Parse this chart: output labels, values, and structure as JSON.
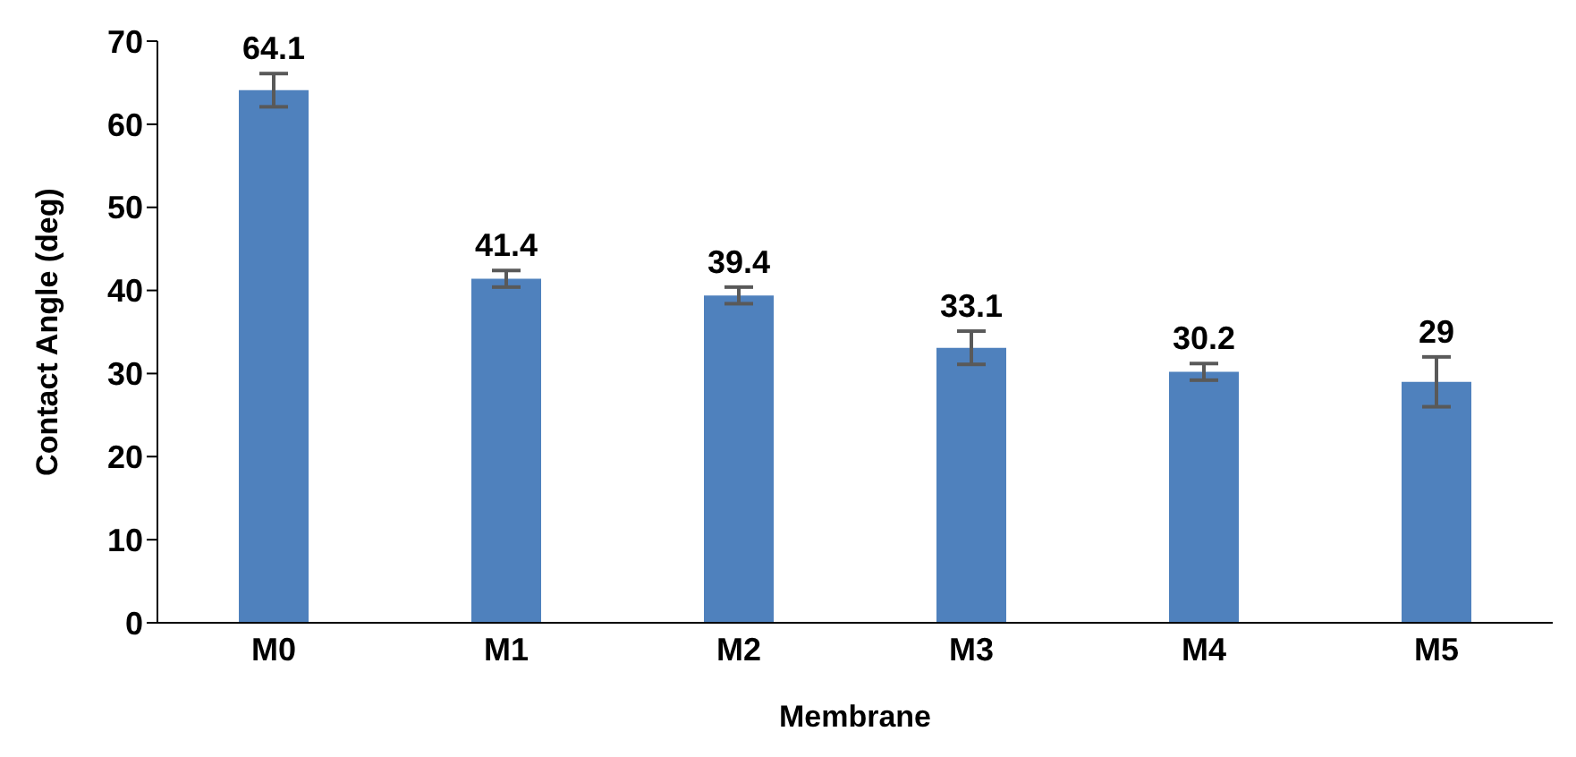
{
  "chart_data": {
    "type": "bar",
    "xlabel": "Membrane",
    "ylabel": "Contact  Angle (deg)",
    "categories": [
      "M0",
      "M1",
      "M2",
      "M3",
      "M4",
      "M5"
    ],
    "values": [
      64.1,
      41.4,
      39.4,
      33.1,
      30.2,
      29
    ],
    "errors": [
      2.0,
      1.0,
      1.0,
      2.0,
      1.0,
      3.0
    ],
    "color": "#4f81bd",
    "ylim": [
      0,
      70
    ],
    "yticks": [
      0,
      10,
      20,
      30,
      40,
      50,
      60,
      70
    ],
    "grid": false,
    "data_labels": true
  }
}
